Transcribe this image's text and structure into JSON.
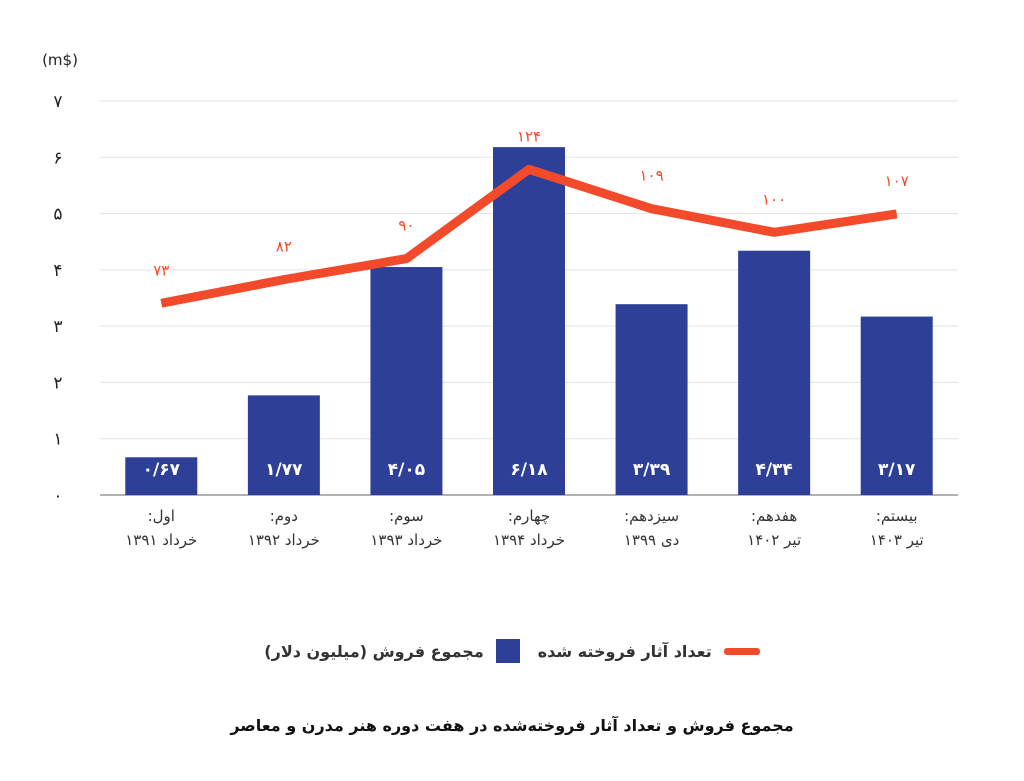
{
  "chart_data": {
    "type": "bar",
    "title": "مجموع فروش و تعداد آثار فروخته‌شده در هفت دوره هنر مدرن و معاصر",
    "y_unit": "(m$)",
    "ylim": [
      0,
      7
    ],
    "yticks": [
      "۰",
      "۱",
      "۲",
      "۳",
      "۴",
      "۵",
      "۶",
      "۷"
    ],
    "grid": true,
    "legend_position": "bottom",
    "categories": [
      [
        "اول:",
        "خرداد ۱۳۹۱"
      ],
      [
        "دوم:",
        "خرداد ۱۳۹۲"
      ],
      [
        "سوم:",
        "خرداد ۱۳۹۳"
      ],
      [
        "چهارم:",
        "خرداد ۱۳۹۴"
      ],
      [
        "سیزدهم:",
        "دی ۱۳۹۹"
      ],
      [
        "هفدهم:",
        "تیر ۱۴۰۲"
      ],
      [
        "بیستم:",
        "تیر ۱۴۰۳"
      ]
    ],
    "series": [
      {
        "name": "مجموع فروش (میلیون دلار)",
        "type": "bar",
        "color": "#2e3f98",
        "values": [
          0.67,
          1.77,
          4.05,
          6.18,
          3.39,
          4.34,
          3.17
        ],
        "labels": [
          "۰/۶۷",
          "۱/۷۷",
          "۴/۰۵",
          "۶/۱۸",
          "۳/۳۹",
          "۴/۳۴",
          "۳/۱۷"
        ]
      },
      {
        "name": "تعداد آثار فروخته شده",
        "type": "line",
        "color": "#f24a2a",
        "values": [
          73,
          82,
          90,
          124,
          109,
          100,
          107
        ],
        "labels": [
          "۷۳",
          "۸۲",
          "۹۰",
          "۱۲۴",
          "۱۰۹",
          "۱۰۰",
          "۱۰۷"
        ]
      }
    ]
  }
}
